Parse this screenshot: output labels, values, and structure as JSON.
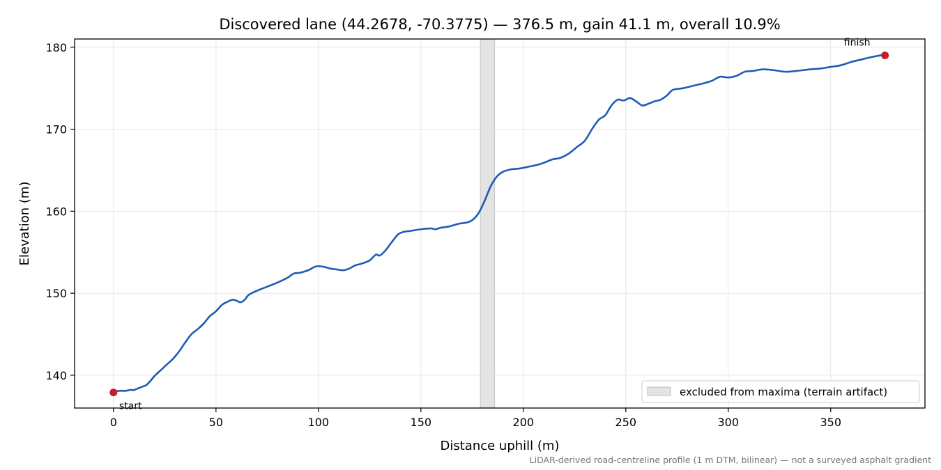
{
  "chart_data": {
    "type": "line",
    "title": "Discovered lane (44.2678, -70.3775) — 376.5 m, gain 41.1 m, overall 10.9%",
    "xlabel": "Distance uphill (m)",
    "ylabel": "Elevation (m)",
    "xlim": [
      -19,
      396
    ],
    "ylim": [
      136.0,
      181.0
    ],
    "xticks": [
      0,
      50,
      100,
      150,
      200,
      250,
      300,
      350
    ],
    "yticks": [
      140,
      150,
      160,
      170,
      180
    ],
    "grid": true,
    "colors": {
      "line": "#1f5bb5",
      "marker": "#c41e2a",
      "band": "#e3e3e3",
      "band_edge": "#bdbdbd",
      "grid": "#e6e6e6"
    },
    "series": [
      {
        "values": [
          [
            0,
            138.0
          ],
          [
            3,
            138.1
          ],
          [
            6,
            138.1
          ],
          [
            8,
            138.2
          ],
          [
            10,
            138.2
          ],
          [
            12,
            138.4
          ],
          [
            14,
            138.6
          ],
          [
            16,
            138.8
          ],
          [
            18,
            139.3
          ],
          [
            20,
            139.9
          ],
          [
            23,
            140.6
          ],
          [
            26,
            141.3
          ],
          [
            29,
            142.0
          ],
          [
            32,
            142.9
          ],
          [
            35,
            144.0
          ],
          [
            38,
            145.0
          ],
          [
            41,
            145.6
          ],
          [
            44,
            146.3
          ],
          [
            47,
            147.2
          ],
          [
            50,
            147.8
          ],
          [
            53,
            148.6
          ],
          [
            56,
            149.0
          ],
          [
            58,
            149.2
          ],
          [
            60,
            149.1
          ],
          [
            62,
            148.9
          ],
          [
            64,
            149.2
          ],
          [
            66,
            149.8
          ],
          [
            70,
            150.3
          ],
          [
            75,
            150.8
          ],
          [
            80,
            151.3
          ],
          [
            85,
            151.9
          ],
          [
            88,
            152.4
          ],
          [
            91,
            152.5
          ],
          [
            95,
            152.8
          ],
          [
            98,
            153.2
          ],
          [
            100,
            153.3
          ],
          [
            103,
            153.2
          ],
          [
            106,
            153.0
          ],
          [
            109,
            152.9
          ],
          [
            112,
            152.8
          ],
          [
            115,
            153.0
          ],
          [
            118,
            153.4
          ],
          [
            121,
            153.6
          ],
          [
            125,
            154.0
          ],
          [
            128,
            154.7
          ],
          [
            130,
            154.6
          ],
          [
            133,
            155.3
          ],
          [
            136,
            156.3
          ],
          [
            139,
            157.2
          ],
          [
            142,
            157.5
          ],
          [
            145,
            157.6
          ],
          [
            150,
            157.8
          ],
          [
            155,
            157.9
          ],
          [
            157,
            157.8
          ],
          [
            160,
            158.0
          ],
          [
            163,
            158.1
          ],
          [
            166,
            158.3
          ],
          [
            169,
            158.5
          ],
          [
            172,
            158.6
          ],
          [
            175,
            158.9
          ],
          [
            178,
            159.7
          ],
          [
            181,
            161.2
          ],
          [
            184,
            163.0
          ],
          [
            187,
            164.2
          ],
          [
            190,
            164.8
          ],
          [
            194,
            165.1
          ],
          [
            198,
            165.2
          ],
          [
            202,
            165.4
          ],
          [
            206,
            165.6
          ],
          [
            210,
            165.9
          ],
          [
            214,
            166.3
          ],
          [
            218,
            166.5
          ],
          [
            222,
            167.0
          ],
          [
            226,
            167.8
          ],
          [
            230,
            168.6
          ],
          [
            234,
            170.2
          ],
          [
            237,
            171.2
          ],
          [
            240,
            171.7
          ],
          [
            243,
            172.9
          ],
          [
            246,
            173.6
          ],
          [
            249,
            173.5
          ],
          [
            252,
            173.8
          ],
          [
            255,
            173.4
          ],
          [
            258,
            172.9
          ],
          [
            261,
            173.1
          ],
          [
            264,
            173.4
          ],
          [
            267,
            173.6
          ],
          [
            270,
            174.1
          ],
          [
            273,
            174.8
          ],
          [
            278,
            175.0
          ],
          [
            283,
            175.3
          ],
          [
            288,
            175.6
          ],
          [
            292,
            175.9
          ],
          [
            296,
            176.4
          ],
          [
            300,
            176.3
          ],
          [
            304,
            176.5
          ],
          [
            308,
            177.0
          ],
          [
            312,
            177.1
          ],
          [
            317,
            177.3
          ],
          [
            322,
            177.2
          ],
          [
            328,
            177.0
          ],
          [
            333,
            177.1
          ],
          [
            340,
            177.3
          ],
          [
            345,
            177.4
          ],
          [
            350,
            177.6
          ],
          [
            355,
            177.8
          ],
          [
            360,
            178.2
          ],
          [
            365,
            178.5
          ],
          [
            370,
            178.8
          ],
          [
            376.5,
            179.1
          ]
        ]
      }
    ],
    "excluded_band": {
      "x_start": 179,
      "x_end": 186
    },
    "markers": [
      {
        "label": "start",
        "x": 0,
        "y": 137.9
      },
      {
        "label": "finish",
        "x": 376.5,
        "y": 179.0
      }
    ],
    "legend": {
      "placement": "lower right",
      "entries": [
        "excluded from maxima (terrain artifact)"
      ]
    },
    "footnote": "LiDAR-derived road-centreline profile (1 m DTM, bilinear) — not a surveyed asphalt gradient"
  }
}
